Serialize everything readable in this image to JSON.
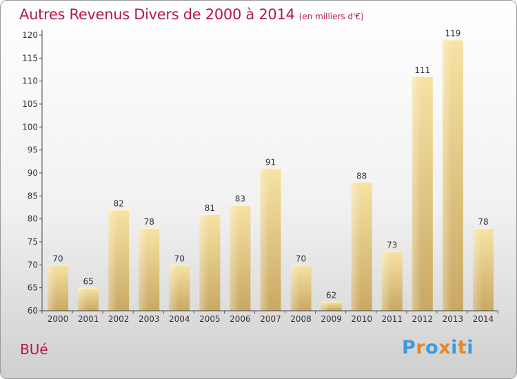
{
  "title": "Autres Revenus Divers de 2000 à 2014",
  "subtitle": "(en milliers d'€)",
  "location": "BUé",
  "brand": {
    "letters": [
      "P",
      "r",
      "o",
      "x",
      "i",
      "t",
      "i"
    ],
    "colors": [
      "#3c9be0",
      "#e0892a",
      "#3c9be0",
      "#e0892a",
      "#3c9be0",
      "#e0892a",
      "#3c9be0"
    ]
  },
  "chart_data": {
    "type": "bar",
    "categories": [
      "2000",
      "2001",
      "2002",
      "2003",
      "2004",
      "2005",
      "2006",
      "2007",
      "2008",
      "2009",
      "2010",
      "2011",
      "2012",
      "2013",
      "2014"
    ],
    "values": [
      70,
      65,
      82,
      78,
      70,
      81,
      83,
      91,
      70,
      62,
      88,
      73,
      111,
      119,
      78
    ],
    "ylim": [
      60,
      120
    ],
    "yticks": [
      60,
      65,
      70,
      75,
      80,
      85,
      90,
      95,
      100,
      105,
      110,
      115,
      120
    ],
    "grid": false,
    "bar_color": "#ecd48f"
  }
}
